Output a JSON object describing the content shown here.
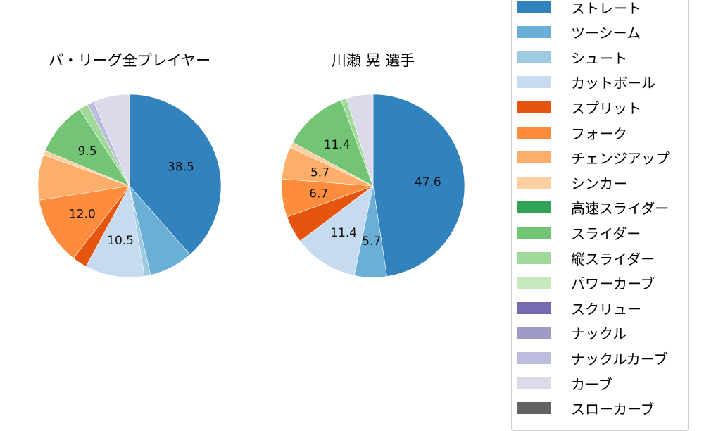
{
  "chart_data": [
    {
      "type": "pie",
      "title": "パ・リーグ全プレイヤー",
      "start_angle": 90,
      "direction": "clockwise",
      "slices": [
        {
          "label": "ストレート",
          "value": 38.5,
          "color": "#3182bd",
          "show_label": true
        },
        {
          "label": "ツーシーム",
          "value": 7.8,
          "color": "#6baed6",
          "show_label": false
        },
        {
          "label": "シュート",
          "value": 1.1,
          "color": "#9ecae1",
          "show_label": false
        },
        {
          "label": "カットボール",
          "value": 10.5,
          "color": "#c6dbef",
          "show_label": true
        },
        {
          "label": "スプリット",
          "value": 2.6,
          "color": "#e6550d",
          "show_label": false
        },
        {
          "label": "フォーク",
          "value": 12.0,
          "color": "#fd8d3c",
          "show_label": true
        },
        {
          "label": "チェンジアップ",
          "value": 8.0,
          "color": "#fdae6b",
          "show_label": false
        },
        {
          "label": "シンカー",
          "value": 0.8,
          "color": "#fdd0a2",
          "show_label": false
        },
        {
          "label": "スライダー",
          "value": 9.5,
          "color": "#74c476",
          "show_label": true
        },
        {
          "label": "縦スライダー",
          "value": 1.6,
          "color": "#a1d99b",
          "show_label": false
        },
        {
          "label": "ナックルカーブ",
          "value": 1.2,
          "color": "#bcbddc",
          "show_label": false
        },
        {
          "label": "カーブ",
          "value": 6.4,
          "color": "#dadaeb",
          "show_label": false
        }
      ]
    },
    {
      "type": "pie",
      "title": "川瀬 晃  選手",
      "start_angle": 90,
      "direction": "clockwise",
      "slices": [
        {
          "label": "ストレート",
          "value": 47.6,
          "color": "#3182bd",
          "show_label": true
        },
        {
          "label": "ツーシーム",
          "value": 5.7,
          "color": "#6baed6",
          "show_label": true
        },
        {
          "label": "カットボール",
          "value": 11.4,
          "color": "#c6dbef",
          "show_label": true
        },
        {
          "label": "スプリット",
          "value": 4.8,
          "color": "#e6550d",
          "show_label": false
        },
        {
          "label": "フォーク",
          "value": 6.7,
          "color": "#fd8d3c",
          "show_label": true
        },
        {
          "label": "チェンジアップ",
          "value": 5.7,
          "color": "#fdae6b",
          "show_label": true
        },
        {
          "label": "シンカー",
          "value": 1.0,
          "color": "#fdd0a2",
          "show_label": false
        },
        {
          "label": "スライダー",
          "value": 11.4,
          "color": "#74c476",
          "show_label": true
        },
        {
          "label": "縦スライダー",
          "value": 1.0,
          "color": "#a1d99b",
          "show_label": false
        },
        {
          "label": "カーブ",
          "value": 4.7,
          "color": "#dadaeb",
          "show_label": false
        }
      ]
    }
  ],
  "titles": {
    "left": "パ・リーグ全プレイヤー",
    "right": "川瀬 晃  選手"
  },
  "legend": {
    "items": [
      {
        "label": "ストレート",
        "color": "#3182bd"
      },
      {
        "label": "ツーシーム",
        "color": "#6baed6"
      },
      {
        "label": "シュート",
        "color": "#9ecae1"
      },
      {
        "label": "カットボール",
        "color": "#c6dbef"
      },
      {
        "label": "スプリット",
        "color": "#e6550d"
      },
      {
        "label": "フォーク",
        "color": "#fd8d3c"
      },
      {
        "label": "チェンジアップ",
        "color": "#fdae6b"
      },
      {
        "label": "シンカー",
        "color": "#fdd0a2"
      },
      {
        "label": "高速スライダー",
        "color": "#31a354"
      },
      {
        "label": "スライダー",
        "color": "#74c476"
      },
      {
        "label": "縦スライダー",
        "color": "#a1d99b"
      },
      {
        "label": "パワーカーブ",
        "color": "#c7e9c0"
      },
      {
        "label": "スクリュー",
        "color": "#756bb1"
      },
      {
        "label": "ナックル",
        "color": "#9e9ac8"
      },
      {
        "label": "ナックルカーブ",
        "color": "#bcbddc"
      },
      {
        "label": "カーブ",
        "color": "#dadaeb"
      },
      {
        "label": "スローカーブ",
        "color": "#636363"
      }
    ]
  }
}
